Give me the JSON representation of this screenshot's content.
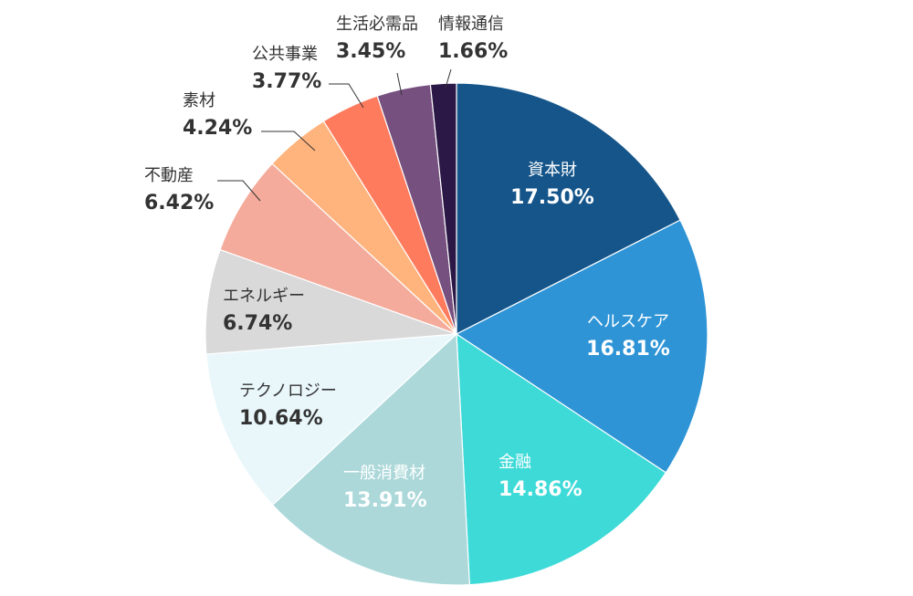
{
  "chart_data": {
    "type": "pie",
    "title": "",
    "slices": [
      {
        "label": "資本財",
        "value": 17.5,
        "display": "17.50%",
        "color": "#15558a"
      },
      {
        "label": "ヘルスケア",
        "value": 16.81,
        "display": "16.81%",
        "color": "#2e94d6"
      },
      {
        "label": "金融",
        "value": 14.86,
        "display": "14.86%",
        "color": "#3ddad8"
      },
      {
        "label": "一般消費材",
        "value": 13.91,
        "display": "13.91%",
        "color": "#acd8da"
      },
      {
        "label": "テクノロジー",
        "value": 10.64,
        "display": "10.64%",
        "color": "#e9f7fb"
      },
      {
        "label": "エネルギー",
        "value": 6.74,
        "display": "6.74%",
        "color": "#d9d9d9"
      },
      {
        "label": "不動産",
        "value": 6.42,
        "display": "6.42%",
        "color": "#f4ab9b"
      },
      {
        "label": "素材",
        "value": 4.24,
        "display": "4.24%",
        "color": "#ffb37d"
      },
      {
        "label": "公共事業",
        "value": 3.77,
        "display": "3.77%",
        "color": "#ff7b5d"
      },
      {
        "label": "生活必需品",
        "value": 3.45,
        "display": "3.45%",
        "color": "#76507f"
      },
      {
        "label": "情報通信",
        "value": 1.66,
        "display": "1.66%",
        "color": "#2b1846"
      }
    ]
  }
}
